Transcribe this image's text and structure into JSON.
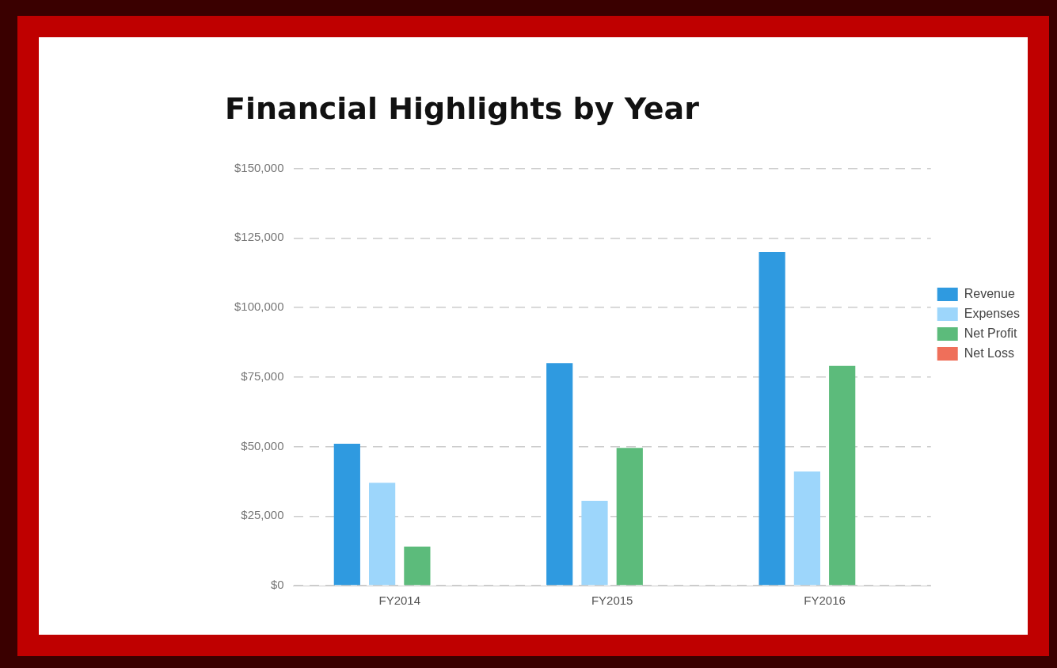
{
  "chart_data": {
    "type": "bar",
    "title": "Financial Highlights by Year",
    "categories": [
      "FY2014",
      "FY2015",
      "FY2016"
    ],
    "series": [
      {
        "name": "Revenue",
        "color": "#2f9ae0",
        "values": [
          51000,
          80000,
          120000
        ]
      },
      {
        "name": "Expenses",
        "color": "#9dd6fb",
        "values": [
          37000,
          30500,
          41000
        ]
      },
      {
        "name": "Net Profit",
        "color": "#5cbb7b",
        "values": [
          14000,
          49500,
          79000
        ]
      },
      {
        "name": "Net Loss",
        "color": "#ef6f5a",
        "values": [
          null,
          null,
          null
        ]
      }
    ],
    "ylim": [
      0,
      150000
    ],
    "yticks": [
      {
        "value": 0,
        "label": "$0"
      },
      {
        "value": 25000,
        "label": "$25,000"
      },
      {
        "value": 50000,
        "label": "$50,000"
      },
      {
        "value": 75000,
        "label": "$75,000"
      },
      {
        "value": 100000,
        "label": "$100,000"
      },
      {
        "value": 125000,
        "label": "$125,000"
      },
      {
        "value": 150000,
        "label": "$150,000"
      }
    ],
    "grid": "y",
    "legend": "right"
  }
}
